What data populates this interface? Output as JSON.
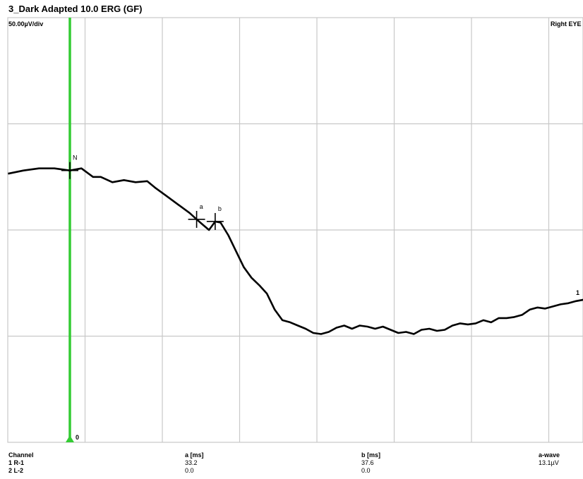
{
  "window": {
    "title": "3_Dark Adapted 10.0 ERG (GF)"
  },
  "plot": {
    "scale_label": "50.00µV/div",
    "eye_label": "Right EYE",
    "trace_end_label": "1",
    "cursor_zero_label": "0",
    "colors": {
      "grid": "#c8c8c8",
      "trace": "#000000",
      "cursor": "#33cc33"
    }
  },
  "chart_data": {
    "type": "line",
    "title": "3_Dark Adapted 10.0 ERG (GF)",
    "y_scale": "50.00µV/div",
    "grid": true,
    "vertical_divisions": 4,
    "horizontal_divisions": 7.5,
    "series": [
      {
        "name": "1",
        "points": [
          [
            -0.8,
            0.53
          ],
          [
            -0.6,
            0.56
          ],
          [
            -0.4,
            0.58
          ],
          [
            -0.2,
            0.58
          ],
          [
            0.0,
            0.56
          ],
          [
            0.15,
            0.58
          ],
          [
            0.3,
            0.5
          ],
          [
            0.4,
            0.5
          ],
          [
            0.55,
            0.45
          ],
          [
            0.7,
            0.47
          ],
          [
            0.85,
            0.45
          ],
          [
            1.0,
            0.46
          ],
          [
            1.1,
            0.4
          ],
          [
            1.25,
            0.32
          ],
          [
            1.4,
            0.24
          ],
          [
            1.55,
            0.16
          ],
          [
            1.64,
            0.1
          ],
          [
            1.72,
            0.05
          ],
          [
            1.8,
            0.0
          ],
          [
            1.88,
            0.08
          ],
          [
            1.95,
            0.07
          ],
          [
            2.05,
            -0.05
          ],
          [
            2.15,
            -0.2
          ],
          [
            2.25,
            -0.35
          ],
          [
            2.35,
            -0.45
          ],
          [
            2.45,
            -0.52
          ],
          [
            2.55,
            -0.6
          ],
          [
            2.65,
            -0.75
          ],
          [
            2.75,
            -0.85
          ],
          [
            2.85,
            -0.87
          ],
          [
            2.95,
            -0.9
          ],
          [
            3.05,
            -0.93
          ],
          [
            3.15,
            -0.97
          ],
          [
            3.25,
            -0.98
          ],
          [
            3.35,
            -0.96
          ],
          [
            3.45,
            -0.92
          ],
          [
            3.55,
            -0.9
          ],
          [
            3.65,
            -0.93
          ],
          [
            3.75,
            -0.9
          ],
          [
            3.85,
            -0.91
          ],
          [
            3.95,
            -0.93
          ],
          [
            4.05,
            -0.91
          ],
          [
            4.15,
            -0.94
          ],
          [
            4.25,
            -0.97
          ],
          [
            4.35,
            -0.96
          ],
          [
            4.45,
            -0.98
          ],
          [
            4.55,
            -0.94
          ],
          [
            4.65,
            -0.93
          ],
          [
            4.75,
            -0.95
          ],
          [
            4.85,
            -0.94
          ],
          [
            4.95,
            -0.9
          ],
          [
            5.05,
            -0.88
          ],
          [
            5.15,
            -0.89
          ],
          [
            5.25,
            -0.88
          ],
          [
            5.35,
            -0.85
          ],
          [
            5.45,
            -0.87
          ],
          [
            5.55,
            -0.83
          ],
          [
            5.65,
            -0.83
          ],
          [
            5.75,
            -0.82
          ],
          [
            5.85,
            -0.8
          ],
          [
            5.95,
            -0.75
          ],
          [
            6.05,
            -0.73
          ],
          [
            6.15,
            -0.74
          ],
          [
            6.25,
            -0.72
          ],
          [
            6.35,
            -0.7
          ],
          [
            6.45,
            -0.69
          ],
          [
            6.55,
            -0.67
          ],
          [
            6.7,
            -0.65
          ]
        ]
      }
    ],
    "markers": [
      {
        "label": "N",
        "x": 0.0,
        "y": 0.56
      },
      {
        "label": "a",
        "x": 1.64,
        "y": 0.1
      },
      {
        "label": "b",
        "x": 1.88,
        "y": 0.08
      }
    ]
  },
  "results_table": {
    "headers": [
      "Channel",
      "a [ms]",
      "b [ms]",
      "a-wave"
    ],
    "rows": [
      [
        "1 R-1",
        "33.2",
        "37.6",
        "13.1µV"
      ],
      [
        "2 L-2",
        "0.0",
        "0.0",
        ""
      ]
    ]
  }
}
